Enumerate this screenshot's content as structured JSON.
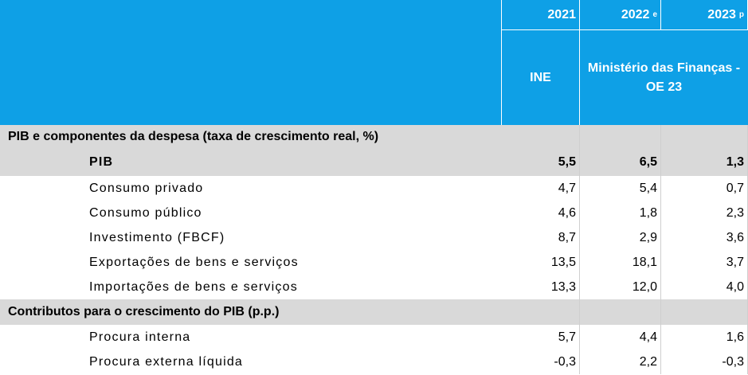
{
  "header": {
    "years": [
      {
        "year": "2021"
      },
      {
        "year": "2022",
        "note": "e"
      },
      {
        "year": "2023",
        "note": "p"
      }
    ],
    "sources": [
      "INE",
      "Ministério das Finanças - OE 23"
    ]
  },
  "sections": [
    {
      "title": "PIB e componentes da despesa (taxa de crescimento real, %)",
      "rows": [
        {
          "label": "PIB",
          "values": [
            "5,5",
            "6,5",
            "1,3"
          ],
          "emphasis": true
        },
        {
          "label": "Consumo privado",
          "values": [
            "4,7",
            "5,4",
            "0,7"
          ]
        },
        {
          "label": "Consumo público",
          "values": [
            "4,6",
            "1,8",
            "2,3"
          ]
        },
        {
          "label": "Investimento (FBCF)",
          "values": [
            "8,7",
            "2,9",
            "3,6"
          ]
        },
        {
          "label": "Exportações de bens e serviços",
          "values": [
            "13,5",
            "18,1",
            "3,7"
          ]
        },
        {
          "label": "Importações de bens e serviços",
          "values": [
            "13,3",
            "12,0",
            "4,0"
          ]
        }
      ]
    },
    {
      "title": "Contributos para o crescimento do PIB (p.p.)",
      "rows": [
        {
          "label": "Procura interna",
          "values": [
            "5,7",
            "4,4",
            "1,6"
          ]
        },
        {
          "label": "Procura externa líquida",
          "values": [
            "-0,3",
            "2,2",
            "-0,3"
          ]
        }
      ]
    }
  ]
}
